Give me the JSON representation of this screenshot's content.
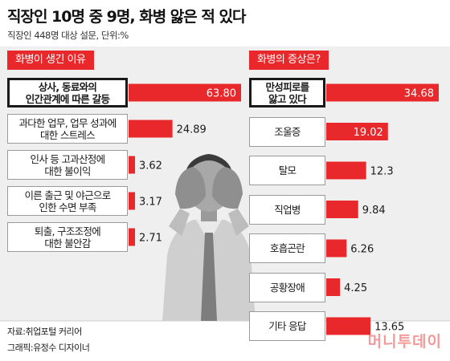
{
  "header": {
    "title": "직장인 10명 중 9명, 화병 앓은 적 있다",
    "subtitle": "직장인 448명 대상 설문, 단위:%"
  },
  "footer": {
    "source": "자료:취업포털 커리어",
    "graphic": "그래픽:유정수 디자이너"
  },
  "watermark": "머니투데이",
  "colors": {
    "bar": "#e8282a",
    "tab": "#e8282a",
    "background": "#efefef",
    "text": "#1a1a1a"
  },
  "chart_data": [
    {
      "type": "bar",
      "orientation": "horizontal",
      "title": "화병이 생긴 이유",
      "categories": [
        "상사, 동료와의\n인간관계에 따른 갈등",
        "과다한 업무, 업무 성과에\n대한 스트레스",
        "인사 등 고과산정에\n대한 불이익",
        "이른 출근 및 야근으로\n인한 수면 부족",
        "퇴출, 구조조정에\n대한 불안감"
      ],
      "values": [
        63.8,
        24.89,
        3.62,
        3.17,
        2.71
      ],
      "value_labels": [
        "63.80",
        "24.89",
        "3.62",
        "3.17",
        "2.71"
      ],
      "unit": "%"
    },
    {
      "type": "bar",
      "orientation": "horizontal",
      "title": "화병의 증상은?",
      "categories": [
        "만성피로를\n앓고 있다",
        "조울증",
        "탈모",
        "직업병",
        "호흡곤란",
        "공황장애",
        "기타 응답"
      ],
      "values": [
        34.68,
        19.02,
        12.3,
        9.84,
        6.26,
        4.25,
        13.65
      ],
      "value_labels": [
        "34.68",
        "19.02",
        "12.3",
        "9.84",
        "6.26",
        "4.25",
        "13.65"
      ],
      "unit": "%"
    }
  ]
}
